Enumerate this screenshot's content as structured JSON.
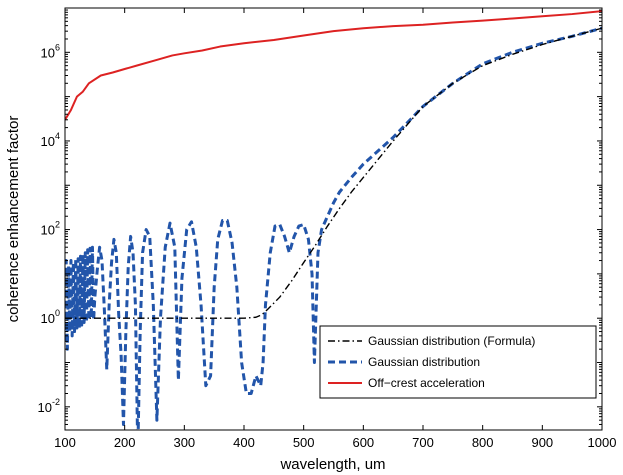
{
  "chart_data": {
    "type": "line",
    "xlabel": "wavelength, um",
    "ylabel": "coherence enhancement factor",
    "xlim": [
      100,
      1000
    ],
    "ylim": [
      0.003,
      10000000
    ],
    "yscale": "log",
    "x_ticks": [
      100,
      200,
      300,
      400,
      500,
      600,
      700,
      800,
      900,
      1000
    ],
    "y_ticks": [
      {
        "value": 0.01,
        "base": "10",
        "exp": "-2"
      },
      {
        "value": 1,
        "base": "10",
        "exp": "0"
      },
      {
        "value": 100,
        "base": "10",
        "exp": "2"
      },
      {
        "value": 10000,
        "base": "10",
        "exp": "4"
      },
      {
        "value": 1000000,
        "base": "10",
        "exp": "6"
      }
    ],
    "grid": false,
    "legend_position": "bottom-right",
    "series": [
      {
        "name": "Gaussian distribution (Formula)",
        "color": "#000000",
        "style": "dashdot",
        "x": [
          100,
          150,
          200,
          250,
          300,
          350,
          400,
          420,
          430,
          440,
          460,
          480,
          500,
          520,
          540,
          560,
          580,
          600,
          650,
          700,
          750,
          800,
          850,
          900,
          950,
          1000
        ],
        "y": [
          1,
          1,
          1,
          1,
          1,
          1,
          1,
          1.05,
          1.2,
          1.6,
          3,
          7,
          18,
          45,
          120,
          300,
          700,
          1500,
          10000,
          60000,
          200000,
          500000,
          900000,
          1500000,
          2300000,
          3500000
        ]
      },
      {
        "name": "Gaussian distribution",
        "color": "#2255aa",
        "style": "dashed",
        "x": [
          100,
          102,
          104,
          106,
          108,
          110,
          112,
          114,
          116,
          118,
          120,
          122,
          124,
          126,
          128,
          130,
          132,
          134,
          136,
          138,
          140,
          142,
          144,
          146,
          148,
          150,
          154,
          158,
          162,
          166,
          170,
          174,
          178,
          182,
          186,
          190,
          194,
          198,
          202,
          206,
          210,
          214,
          218,
          222,
          226,
          230,
          236,
          242,
          248,
          254,
          260,
          268,
          276,
          284,
          290,
          296,
          304,
          312,
          320,
          328,
          336,
          344,
          350,
          356,
          364,
          372,
          380,
          388,
          396,
          404,
          412,
          420,
          428,
          432,
          436,
          444,
          452,
          460,
          468,
          476,
          484,
          492,
          500,
          508,
          514,
          518,
          524,
          530,
          540,
          550,
          560,
          580,
          600,
          650,
          700,
          750,
          800,
          850,
          900,
          950,
          1000
        ],
        "y": [
          0.3,
          20,
          0.2,
          15,
          0.5,
          20,
          0.4,
          18,
          0.5,
          22,
          0.6,
          22,
          0.6,
          25,
          0.7,
          28,
          0.8,
          30,
          0.8,
          35,
          0.9,
          38,
          1.0,
          40,
          0.9,
          3,
          12,
          40,
          20,
          1.5,
          0.07,
          2,
          18,
          60,
          30,
          1.2,
          0.15,
          0.004,
          0.5,
          15,
          70,
          30,
          2,
          0.001,
          0.5,
          30,
          100,
          70,
          2,
          0.005,
          1,
          40,
          140,
          40,
          0.04,
          8,
          100,
          150,
          40,
          2,
          0.03,
          0.05,
          5,
          60,
          160,
          160,
          50,
          5,
          0.1,
          0.02,
          0.02,
          0.05,
          0.03,
          0.1,
          2,
          30,
          120,
          130,
          70,
          30,
          70,
          120,
          130,
          60,
          10,
          0.1,
          30,
          100,
          200,
          400,
          700,
          1500,
          3000,
          12000,
          60000,
          200000,
          550000,
          1000000,
          1600000,
          2300000,
          3500000
        ]
      },
      {
        "name": "Off−crest acceleration",
        "color": "#dd2222",
        "style": "solid",
        "x": [
          100,
          110,
          120,
          130,
          140,
          160,
          180,
          200,
          220,
          250,
          280,
          300,
          330,
          360,
          400,
          450,
          500,
          550,
          600,
          650,
          700,
          750,
          800,
          850,
          900,
          950,
          1000
        ],
        "y": [
          30000,
          50000,
          100000,
          130000,
          200000,
          300000,
          350000,
          420000,
          500000,
          650000,
          850000,
          950000,
          1100000,
          1350000,
          1600000,
          1900000,
          2400000,
          3000000,
          3500000,
          3900000,
          4200000,
          4700000,
          5200000,
          5800000,
          6500000,
          7300000,
          8500000
        ]
      }
    ]
  }
}
